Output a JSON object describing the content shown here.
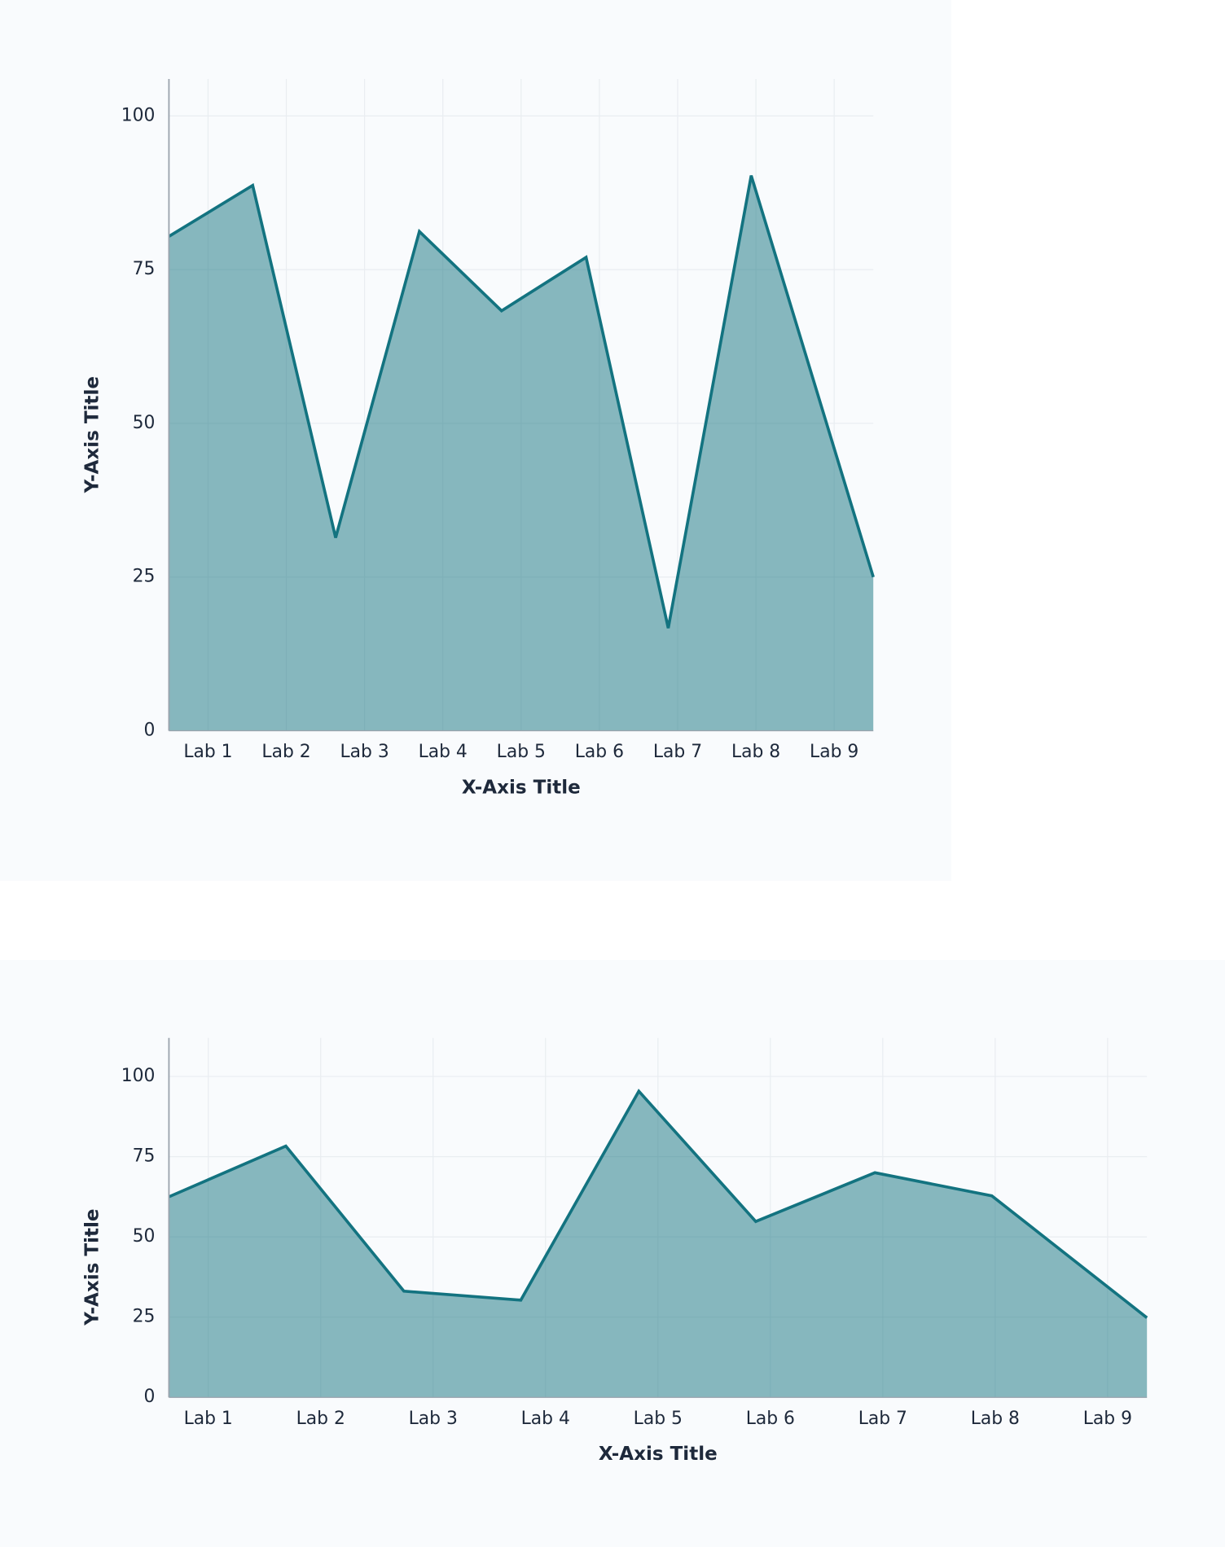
{
  "chart_data": [
    {
      "type": "area",
      "color": "#137380",
      "grid": true,
      "x_label": "X-Axis Title",
      "y_label": "Y-Axis Title",
      "x": [
        0.5,
        1.57,
        2.63,
        3.7,
        4.75,
        5.83,
        6.88,
        7.94,
        9.5
      ],
      "values": [
        80.4,
        88.7,
        31.4,
        81.2,
        68.3,
        77.0,
        16.7,
        90.3,
        25.0
      ],
      "xlim": [
        0.5,
        9.5
      ],
      "xticks": [
        {
          "value": 1,
          "label": "Lab 1"
        },
        {
          "value": 2,
          "label": "Lab 2"
        },
        {
          "value": 3,
          "label": "Lab 3"
        },
        {
          "value": 4,
          "label": "Lab 4"
        },
        {
          "value": 5,
          "label": "Lab 5"
        },
        {
          "value": 6,
          "label": "Lab 6"
        },
        {
          "value": 7,
          "label": "Lab 7"
        },
        {
          "value": 8,
          "label": "Lab 8"
        },
        {
          "value": 9,
          "label": "Lab 9"
        }
      ],
      "ylim": [
        0,
        106
      ],
      "yticks": [
        0,
        25,
        50,
        75,
        100
      ]
    },
    {
      "type": "area",
      "color": "#137380",
      "grid": true,
      "x_label": "X-Axis Title",
      "y_label": "Y-Axis Title",
      "x": [
        0.65,
        1.69,
        2.74,
        3.78,
        4.83,
        5.87,
        6.93,
        7.97,
        9.35
      ],
      "values": [
        62.5,
        78.3,
        33.1,
        30.3,
        95.4,
        54.8,
        70.0,
        62.8,
        24.8
      ],
      "xlim": [
        0.65,
        9.35
      ],
      "xticks": [
        {
          "value": 1,
          "label": "Lab 1"
        },
        {
          "value": 2,
          "label": "Lab 2"
        },
        {
          "value": 3,
          "label": "Lab 3"
        },
        {
          "value": 4,
          "label": "Lab 4"
        },
        {
          "value": 5,
          "label": "Lab 5"
        },
        {
          "value": 6,
          "label": "Lab 6"
        },
        {
          "value": 7,
          "label": "Lab 7"
        },
        {
          "value": 8,
          "label": "Lab 8"
        },
        {
          "value": 9,
          "label": "Lab 9"
        }
      ],
      "ylim": [
        0,
        112
      ],
      "yticks": [
        0,
        25,
        50,
        75,
        100
      ]
    }
  ]
}
